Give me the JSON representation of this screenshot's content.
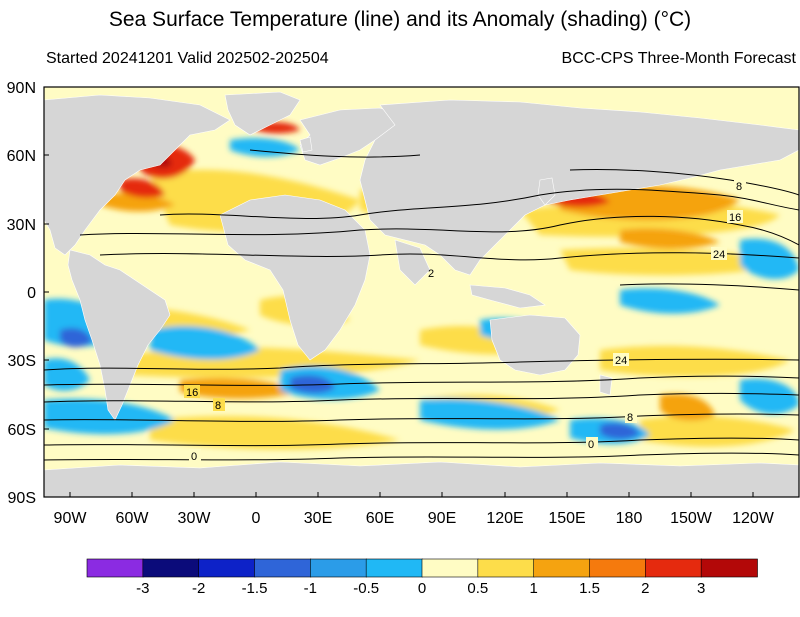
{
  "title": "Sea Surface Temperature (line) and its Anomaly (shading) (°C)",
  "subtitle_left": "Started 20241201  Valid 202502-202504",
  "subtitle_right": "BCC-CPS Three-Month Forecast",
  "map": {
    "lat_labels": [
      "90N",
      "60N",
      "30N",
      "0",
      "30S",
      "60S",
      "90S"
    ],
    "lon_labels": [
      "90W",
      "60W",
      "30W",
      "0",
      "30E",
      "60E",
      "90E",
      "120E",
      "150E",
      "180",
      "150W",
      "120W"
    ],
    "land_color": "#d6d6d6",
    "contour_labels": [
      "8",
      "16",
      "24",
      "24",
      "16",
      "8",
      "8",
      "0",
      "0",
      "2"
    ]
  },
  "colorbar": {
    "colors": [
      "#8b2be2",
      "#0b0b7a",
      "#0d22c8",
      "#2f65d8",
      "#2b9ce8",
      "#20b8f5",
      "#fffcc4",
      "#fddd4a",
      "#f5a310",
      "#f57a0d",
      "#e52a0e",
      "#b30808"
    ],
    "labels": [
      "-3",
      "-2",
      "-1.5",
      "-1",
      "-0.5",
      "0",
      "0.5",
      "1",
      "1.5",
      "2",
      "3"
    ]
  }
}
